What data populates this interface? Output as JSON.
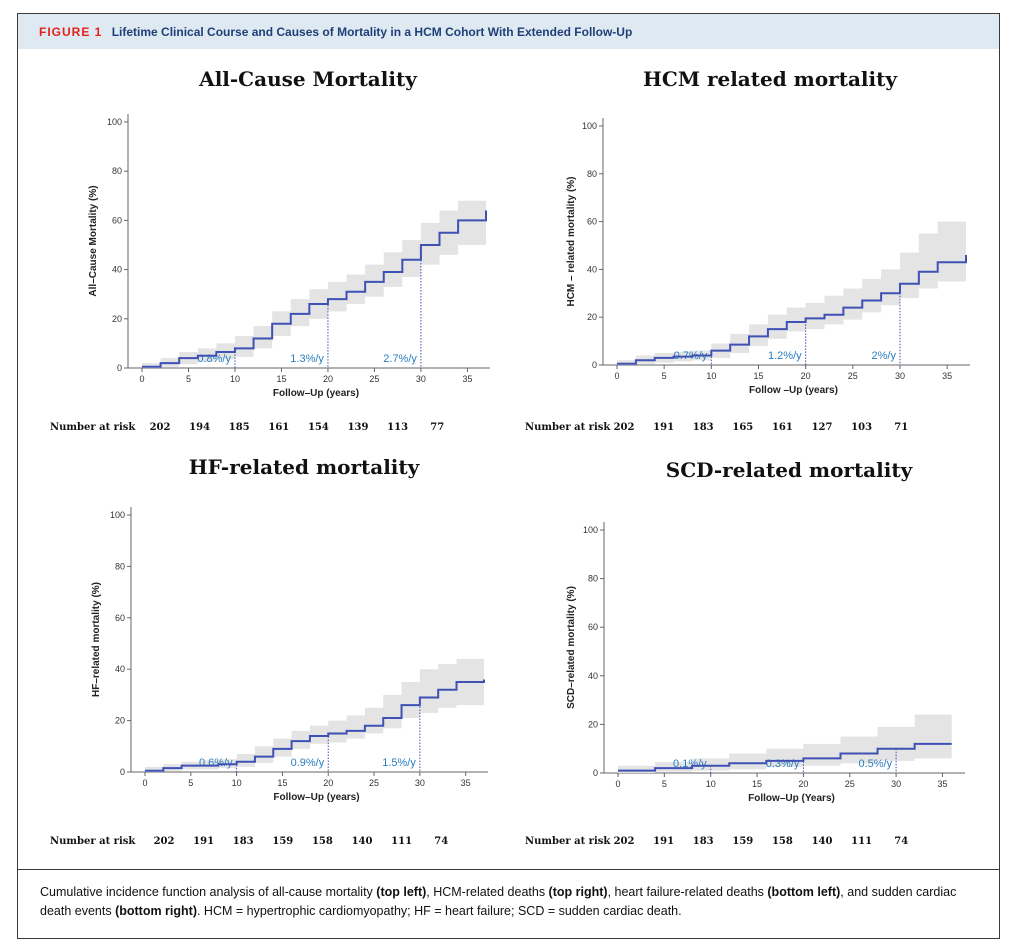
{
  "figure": {
    "label": "FIGURE 1",
    "title": "Lifetime Clinical Course and Causes of Mortality in a HCM Cohort With Extended Follow-Up"
  },
  "colors": {
    "line": "#3f51b5",
    "band": "#e4e4e4",
    "rate": "#2a7fc0",
    "header_bg": "#dfe9f2"
  },
  "chart_data": [
    {
      "type": "line",
      "title": "All-Cause Mortality",
      "xlabel": "Follow–Up (years)",
      "ylabel": "All–Cause Mortality (%)",
      "xlim": [
        0,
        37
      ],
      "ylim": [
        0,
        100
      ],
      "xticks": [
        0,
        5,
        10,
        15,
        20,
        25,
        30,
        35
      ],
      "yticks": [
        0,
        20,
        40,
        60,
        80,
        100
      ],
      "x": [
        0,
        2,
        4,
        6,
        8,
        10,
        12,
        14,
        16,
        18,
        20,
        22,
        24,
        26,
        28,
        30,
        32,
        34,
        37
      ],
      "values": [
        0.5,
        2,
        4,
        5,
        6.5,
        8,
        12,
        18,
        22,
        26,
        28,
        31,
        35,
        39,
        44,
        50,
        55,
        60,
        64
      ],
      "ci_lower": [
        0,
        0.5,
        1.5,
        2.5,
        3.5,
        4.5,
        8,
        13,
        17,
        20,
        23,
        26,
        29,
        33,
        37,
        42,
        46,
        50,
        54
      ],
      "ci_upper": [
        2,
        4,
        6.5,
        8,
        10,
        13,
        17,
        23,
        28,
        32,
        35,
        38,
        42,
        47,
        52,
        59,
        64,
        68,
        72
      ],
      "rate_markers": [
        {
          "x": 10,
          "label": "0.8%/y"
        },
        {
          "x": 20,
          "label": "1.3%/y"
        },
        {
          "x": 30,
          "label": "2.7%/y"
        }
      ],
      "risk_label": "Number at risk",
      "risk": [
        "202",
        "194",
        "185",
        "161",
        "154",
        "139",
        "113",
        "77"
      ]
    },
    {
      "type": "line",
      "title": "HCM related mortality",
      "xlabel": "Follow –Up (years)",
      "ylabel": "HCM – related mortality (%)",
      "xlim": [
        0,
        37
      ],
      "ylim": [
        0,
        100
      ],
      "xticks": [
        0,
        5,
        10,
        15,
        20,
        25,
        30,
        35
      ],
      "yticks": [
        0,
        20,
        40,
        60,
        80,
        100
      ],
      "x": [
        0,
        2,
        4,
        6,
        8,
        10,
        12,
        14,
        16,
        18,
        20,
        22,
        24,
        26,
        28,
        30,
        32,
        34,
        37
      ],
      "values": [
        0.5,
        2,
        3,
        3.5,
        4,
        6,
        8.5,
        12,
        15,
        18,
        19.5,
        21,
        24,
        27,
        30,
        34,
        39,
        43,
        46
      ],
      "ci_lower": [
        0,
        0.5,
        1,
        1.5,
        2,
        3,
        5,
        8,
        11,
        14,
        15,
        17,
        19,
        22,
        25,
        28,
        32,
        35,
        37
      ],
      "ci_upper": [
        2,
        4,
        5,
        5.5,
        6,
        9,
        13,
        17,
        21,
        24,
        26,
        29,
        32,
        36,
        40,
        47,
        55,
        60,
        66
      ],
      "rate_markers": [
        {
          "x": 10,
          "label": "0.7%/y"
        },
        {
          "x": 20,
          "label": "1.2%/y"
        },
        {
          "x": 30,
          "label": "2%/y"
        }
      ],
      "risk_label": "Number at risk",
      "risk": [
        "202",
        "191",
        "183",
        "165",
        "161",
        "127",
        "103",
        "71"
      ]
    },
    {
      "type": "line",
      "title": "HF-related mortality",
      "xlabel": "Follow–Up (years)",
      "ylabel": "HF–related mortality (%)",
      "xlim": [
        0,
        37
      ],
      "ylim": [
        0,
        100
      ],
      "xticks": [
        0,
        5,
        10,
        15,
        20,
        25,
        30,
        35
      ],
      "yticks": [
        0,
        20,
        40,
        60,
        80,
        100
      ],
      "x": [
        0,
        2,
        4,
        6,
        8,
        10,
        12,
        14,
        16,
        18,
        20,
        22,
        24,
        26,
        28,
        30,
        32,
        34,
        37
      ],
      "values": [
        0.5,
        1.5,
        2.5,
        2.5,
        3,
        4,
        6,
        9,
        12,
        14,
        15,
        16,
        18,
        21,
        26,
        29,
        32,
        35,
        36
      ],
      "ci_lower": [
        0,
        0.5,
        1,
        1,
        1.5,
        2,
        3.5,
        6,
        9,
        11,
        11.5,
        13,
        15,
        17,
        21,
        23,
        25,
        26,
        26
      ],
      "ci_upper": [
        2,
        3,
        4,
        4.5,
        5,
        7,
        10,
        13,
        16,
        18,
        20,
        22,
        25,
        30,
        35,
        40,
        42,
        44,
        44
      ],
      "rate_markers": [
        {
          "x": 10,
          "label": "0.6%/y"
        },
        {
          "x": 20,
          "label": "0.9%/y"
        },
        {
          "x": 30,
          "label": "1.5%/y"
        }
      ],
      "risk_label": "Number at risk",
      "risk": [
        "202",
        "191",
        "183",
        "159",
        "158",
        "140",
        "111",
        "74"
      ]
    },
    {
      "type": "line",
      "title": "SCD-related mortality",
      "xlabel": "Follow–Up (Years)",
      "ylabel": "SCD–related mortality (%)",
      "xlim": [
        0,
        37
      ],
      "ylim": [
        0,
        100
      ],
      "xticks": [
        0,
        5,
        10,
        15,
        20,
        25,
        30,
        35
      ],
      "yticks": [
        0,
        20,
        40,
        60,
        80,
        100
      ],
      "x": [
        0,
        4,
        8,
        12,
        16,
        20,
        24,
        28,
        32,
        36
      ],
      "values": [
        1,
        2,
        3,
        4,
        5,
        6,
        8,
        10,
        12,
        12
      ],
      "ci_lower": [
        0,
        0.5,
        1,
        1.5,
        2.5,
        3,
        4,
        5,
        6,
        6
      ],
      "ci_upper": [
        3,
        4.5,
        6,
        8,
        10,
        12,
        15,
        19,
        24,
        24
      ],
      "rate_markers": [
        {
          "x": 10,
          "label": "0.1%/y"
        },
        {
          "x": 20,
          "label": "0.3%/y"
        },
        {
          "x": 30,
          "label": "0.5%/y"
        }
      ],
      "risk_label": "Number at risk",
      "risk": [
        "202",
        "191",
        "183",
        "159",
        "158",
        "140",
        "111",
        "74"
      ]
    }
  ],
  "caption": {
    "parts": [
      {
        "text": "Cumulative incidence function analysis of all-cause mortality ",
        "bold": false
      },
      {
        "text": "(top left)",
        "bold": true
      },
      {
        "text": ", HCM-related deaths ",
        "bold": false
      },
      {
        "text": "(top right)",
        "bold": true
      },
      {
        "text": ", heart failure-related deaths ",
        "bold": false
      },
      {
        "text": "(bottom left)",
        "bold": true
      },
      {
        "text": ", and sudden cardiac death events ",
        "bold": false
      },
      {
        "text": "(bottom right)",
        "bold": true
      },
      {
        "text": ". HCM = hypertrophic cardiomyopathy; HF = heart failure; SCD = sudden cardiac death.",
        "bold": false
      }
    ]
  }
}
